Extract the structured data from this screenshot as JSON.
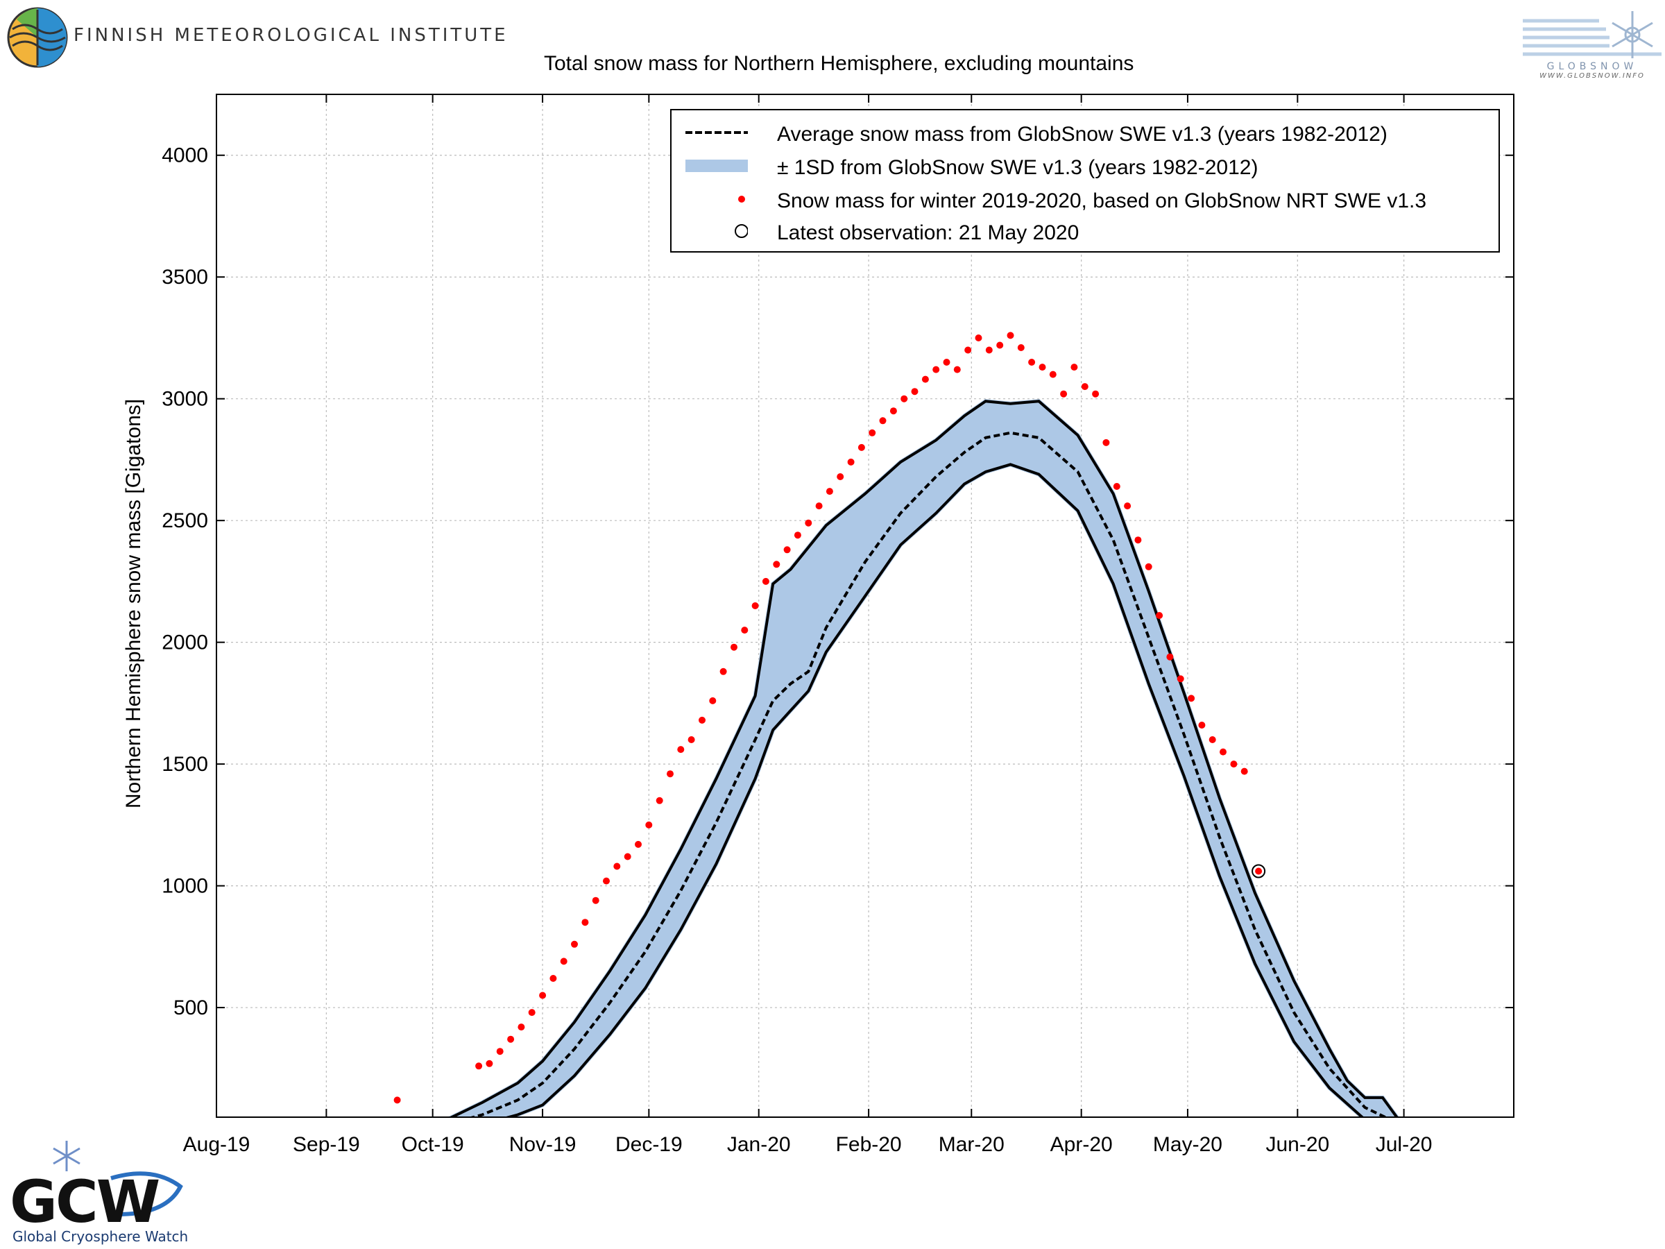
{
  "header": {
    "institute_name": "FINNISH METEOROLOGICAL INSTITUTE",
    "globsnow_word": "GLOBSNOW",
    "globsnow_url": "WWW.GLOBSNOW.INFO"
  },
  "footer": {
    "gcw_logo_text": "GCW",
    "gcw_subtitle": "Global Cryosphere Watch"
  },
  "chart_data": {
    "type": "line",
    "title": "Total snow mass for Northern Hemisphere, excluding mountains",
    "xlabel": "",
    "ylabel": "Northern Hemisphere snow mass [Gigatons]",
    "x_tick_labels": [
      "Aug-19",
      "Sep-19",
      "Oct-19",
      "Nov-19",
      "Dec-19",
      "Jan-20",
      "Feb-20",
      "Mar-20",
      "Apr-20",
      "May-20",
      "Jun-20",
      "Jul-20"
    ],
    "x_tick_dates": [
      "2019-08-01",
      "2019-09-01",
      "2019-10-01",
      "2019-11-01",
      "2019-12-01",
      "2020-01-01",
      "2020-02-01",
      "2020-03-01",
      "2020-04-01",
      "2020-05-01",
      "2020-06-01",
      "2020-07-01"
    ],
    "xlim": [
      "2019-08-01",
      "2020-08-01"
    ],
    "ylim": [
      50,
      4250
    ],
    "y_ticks": [
      500,
      1000,
      1500,
      2000,
      2500,
      3000,
      3500,
      4000
    ],
    "grid": true,
    "legend_position": "top-right",
    "series": [
      {
        "name": "Average snow mass from GlobSnow SWE v1.3 (years 1982-2012)",
        "style": "dashed-line",
        "color": "#000000",
        "points": [
          [
            "2019-09-25",
            0
          ],
          [
            "2019-10-05",
            20
          ],
          [
            "2019-10-15",
            60
          ],
          [
            "2019-10-25",
            120
          ],
          [
            "2019-11-01",
            190
          ],
          [
            "2019-11-10",
            330
          ],
          [
            "2019-11-20",
            520
          ],
          [
            "2019-11-30",
            730
          ],
          [
            "2019-12-10",
            980
          ],
          [
            "2019-12-20",
            1260
          ],
          [
            "2019-12-31",
            1600
          ],
          [
            "2020-01-05",
            1760
          ],
          [
            "2020-01-10",
            1830
          ],
          [
            "2020-01-15",
            1880
          ],
          [
            "2020-01-20",
            2060
          ],
          [
            "2020-01-31",
            2330
          ],
          [
            "2020-02-10",
            2530
          ],
          [
            "2020-02-20",
            2680
          ],
          [
            "2020-02-28",
            2780
          ],
          [
            "2020-03-05",
            2840
          ],
          [
            "2020-03-12",
            2860
          ],
          [
            "2020-03-20",
            2840
          ],
          [
            "2020-03-31",
            2700
          ],
          [
            "2020-04-10",
            2420
          ],
          [
            "2020-04-20",
            2020
          ],
          [
            "2020-04-30",
            1620
          ],
          [
            "2020-05-10",
            1200
          ],
          [
            "2020-05-20",
            820
          ],
          [
            "2020-05-31",
            480
          ],
          [
            "2020-06-10",
            250
          ],
          [
            "2020-06-20",
            90
          ],
          [
            "2020-06-30",
            20
          ],
          [
            "2020-07-05",
            0
          ]
        ]
      },
      {
        "name": "± 1SD from GlobSnow SWE v1.3 (years 1982-2012)",
        "style": "band",
        "color": "#adc8e6",
        "upper": [
          [
            "2019-10-05",
            40
          ],
          [
            "2019-10-15",
            110
          ],
          [
            "2019-10-25",
            190
          ],
          [
            "2019-11-01",
            280
          ],
          [
            "2019-11-10",
            440
          ],
          [
            "2019-11-20",
            650
          ],
          [
            "2019-11-30",
            880
          ],
          [
            "2019-12-10",
            1150
          ],
          [
            "2019-12-20",
            1440
          ],
          [
            "2019-12-31",
            1780
          ],
          [
            "2020-01-05",
            2240
          ],
          [
            "2020-01-10",
            2300
          ],
          [
            "2020-01-15",
            2390
          ],
          [
            "2020-01-20",
            2480
          ],
          [
            "2020-01-31",
            2610
          ],
          [
            "2020-02-10",
            2740
          ],
          [
            "2020-02-20",
            2830
          ],
          [
            "2020-02-28",
            2930
          ],
          [
            "2020-03-05",
            2990
          ],
          [
            "2020-03-12",
            2980
          ],
          [
            "2020-03-20",
            2990
          ],
          [
            "2020-03-31",
            2850
          ],
          [
            "2020-04-10",
            2610
          ],
          [
            "2020-04-20",
            2210
          ],
          [
            "2020-04-30",
            1790
          ],
          [
            "2020-05-10",
            1360
          ],
          [
            "2020-05-20",
            970
          ],
          [
            "2020-05-31",
            610
          ],
          [
            "2020-06-10",
            330
          ],
          [
            "2020-06-15",
            200
          ],
          [
            "2020-06-20",
            130
          ],
          [
            "2020-06-25",
            130
          ],
          [
            "2020-06-30",
            30
          ],
          [
            "2020-07-05",
            0
          ]
        ],
        "lower": [
          [
            "2019-10-05",
            0
          ],
          [
            "2019-10-15",
            20
          ],
          [
            "2019-10-25",
            60
          ],
          [
            "2019-11-01",
            100
          ],
          [
            "2019-11-10",
            220
          ],
          [
            "2019-11-20",
            390
          ],
          [
            "2019-11-30",
            580
          ],
          [
            "2019-12-10",
            820
          ],
          [
            "2019-12-20",
            1090
          ],
          [
            "2019-12-31",
            1440
          ],
          [
            "2020-01-05",
            1640
          ],
          [
            "2020-01-10",
            1720
          ],
          [
            "2020-01-15",
            1800
          ],
          [
            "2020-01-20",
            1960
          ],
          [
            "2020-01-31",
            2190
          ],
          [
            "2020-02-10",
            2400
          ],
          [
            "2020-02-20",
            2530
          ],
          [
            "2020-02-28",
            2650
          ],
          [
            "2020-03-05",
            2700
          ],
          [
            "2020-03-12",
            2730
          ],
          [
            "2020-03-20",
            2690
          ],
          [
            "2020-03-31",
            2540
          ],
          [
            "2020-04-10",
            2240
          ],
          [
            "2020-04-20",
            1830
          ],
          [
            "2020-04-30",
            1450
          ],
          [
            "2020-05-10",
            1040
          ],
          [
            "2020-05-20",
            680
          ],
          [
            "2020-05-31",
            360
          ],
          [
            "2020-06-10",
            170
          ],
          [
            "2020-06-20",
            40
          ],
          [
            "2020-06-30",
            0
          ]
        ]
      },
      {
        "name": "Snow mass for winter 2019-2020, based on GlobSnow NRT SWE v1.3",
        "style": "points",
        "color": "#ff0000",
        "points": [
          [
            "2019-09-21",
            120
          ],
          [
            "2019-10-14",
            260
          ],
          [
            "2019-10-17",
            270
          ],
          [
            "2019-10-20",
            320
          ],
          [
            "2019-10-23",
            370
          ],
          [
            "2019-10-26",
            420
          ],
          [
            "2019-10-29",
            480
          ],
          [
            "2019-11-01",
            550
          ],
          [
            "2019-11-04",
            620
          ],
          [
            "2019-11-07",
            690
          ],
          [
            "2019-11-10",
            760
          ],
          [
            "2019-11-13",
            850
          ],
          [
            "2019-11-16",
            940
          ],
          [
            "2019-11-19",
            1020
          ],
          [
            "2019-11-22",
            1080
          ],
          [
            "2019-11-25",
            1120
          ],
          [
            "2019-11-28",
            1170
          ],
          [
            "2019-12-01",
            1250
          ],
          [
            "2019-12-04",
            1350
          ],
          [
            "2019-12-07",
            1460
          ],
          [
            "2019-12-10",
            1560
          ],
          [
            "2019-12-13",
            1600
          ],
          [
            "2019-12-16",
            1680
          ],
          [
            "2019-12-19",
            1760
          ],
          [
            "2019-12-22",
            1880
          ],
          [
            "2019-12-25",
            1980
          ],
          [
            "2019-12-28",
            2050
          ],
          [
            "2019-12-31",
            2150
          ],
          [
            "2020-01-03",
            2250
          ],
          [
            "2020-01-06",
            2320
          ],
          [
            "2020-01-09",
            2380
          ],
          [
            "2020-01-12",
            2440
          ],
          [
            "2020-01-15",
            2490
          ],
          [
            "2020-01-18",
            2560
          ],
          [
            "2020-01-21",
            2620
          ],
          [
            "2020-01-24",
            2680
          ],
          [
            "2020-01-27",
            2740
          ],
          [
            "2020-01-30",
            2800
          ],
          [
            "2020-02-02",
            2860
          ],
          [
            "2020-02-05",
            2910
          ],
          [
            "2020-02-08",
            2950
          ],
          [
            "2020-02-11",
            3000
          ],
          [
            "2020-02-14",
            3030
          ],
          [
            "2020-02-17",
            3080
          ],
          [
            "2020-02-20",
            3120
          ],
          [
            "2020-02-23",
            3150
          ],
          [
            "2020-02-26",
            3120
          ],
          [
            "2020-02-29",
            3200
          ],
          [
            "2020-03-03",
            3250
          ],
          [
            "2020-03-06",
            3200
          ],
          [
            "2020-03-09",
            3220
          ],
          [
            "2020-03-12",
            3260
          ],
          [
            "2020-03-15",
            3210
          ],
          [
            "2020-03-18",
            3150
          ],
          [
            "2020-03-21",
            3130
          ],
          [
            "2020-03-24",
            3100
          ],
          [
            "2020-03-27",
            3020
          ],
          [
            "2020-03-30",
            3130
          ],
          [
            "2020-04-02",
            3050
          ],
          [
            "2020-04-05",
            3020
          ],
          [
            "2020-04-08",
            2820
          ],
          [
            "2020-04-11",
            2640
          ],
          [
            "2020-04-14",
            2560
          ],
          [
            "2020-04-17",
            2420
          ],
          [
            "2020-04-20",
            2310
          ],
          [
            "2020-04-23",
            2110
          ],
          [
            "2020-04-26",
            1940
          ],
          [
            "2020-04-29",
            1850
          ],
          [
            "2020-05-02",
            1770
          ],
          [
            "2020-05-05",
            1660
          ],
          [
            "2020-05-08",
            1600
          ],
          [
            "2020-05-11",
            1550
          ],
          [
            "2020-05-14",
            1500
          ],
          [
            "2020-05-17",
            1470
          ],
          [
            "2020-05-21",
            1060
          ]
        ]
      },
      {
        "name": "Latest observation: 21 May 2020",
        "style": "open-circle",
        "color": "#000000",
        "points": [
          [
            "2020-05-21",
            1060
          ]
        ]
      }
    ]
  }
}
